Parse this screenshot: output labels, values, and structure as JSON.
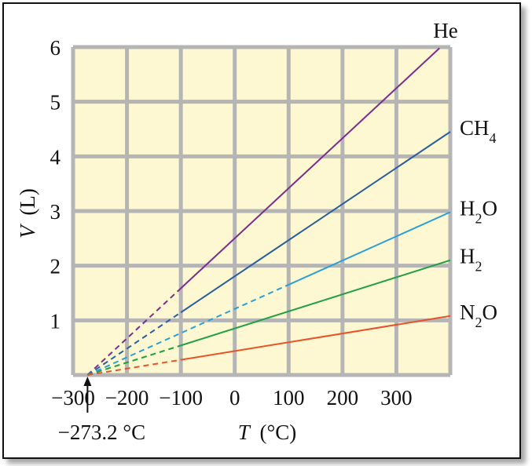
{
  "chart_data": {
    "type": "line",
    "title": "",
    "xlabel": {
      "var": "T",
      "unit": "(°C)"
    },
    "ylabel": {
      "var": "V",
      "unit": "(L)"
    },
    "xlim": [
      -300,
      400
    ],
    "ylim": [
      0,
      6
    ],
    "x_ticks": [
      "−300",
      "−200",
      "−100",
      "0",
      "100",
      "200",
      "300"
    ],
    "x_tick_values": [
      -300,
      -200,
      -100,
      0,
      100,
      200,
      300
    ],
    "y_ticks": [
      "1",
      "2",
      "3",
      "4",
      "5",
      "6"
    ],
    "y_tick_values": [
      1,
      2,
      3,
      4,
      5,
      6
    ],
    "grid": true,
    "annotation": {
      "text": "−273.2 °C",
      "x": -273.2
    },
    "extrapolation_end_x": [
      -100,
      -100,
      100,
      -100,
      -100
    ],
    "series": [
      {
        "name": "He",
        "sub": "",
        "color": "#7b2d8e",
        "x": [
          -273.2,
          380
        ],
        "y": [
          0,
          5.98
        ]
      },
      {
        "name": "CH",
        "sub": "4",
        "color": "#2a5f9e",
        "x": [
          -273.2,
          400
        ],
        "y": [
          0,
          4.45
        ]
      },
      {
        "name": "H",
        "sub": "2",
        "tail": "O",
        "color": "#2a9fd8",
        "x": [
          -273.2,
          400
        ],
        "y": [
          0,
          2.98
        ]
      },
      {
        "name": "H",
        "sub": "2",
        "color": "#22a043",
        "x": [
          -273.2,
          400
        ],
        "y": [
          0,
          2.1
        ]
      },
      {
        "name": "N",
        "sub": "2",
        "tail": "O",
        "color": "#e8532a",
        "x": [
          -273.2,
          400
        ],
        "y": [
          0,
          1.08
        ]
      }
    ]
  }
}
